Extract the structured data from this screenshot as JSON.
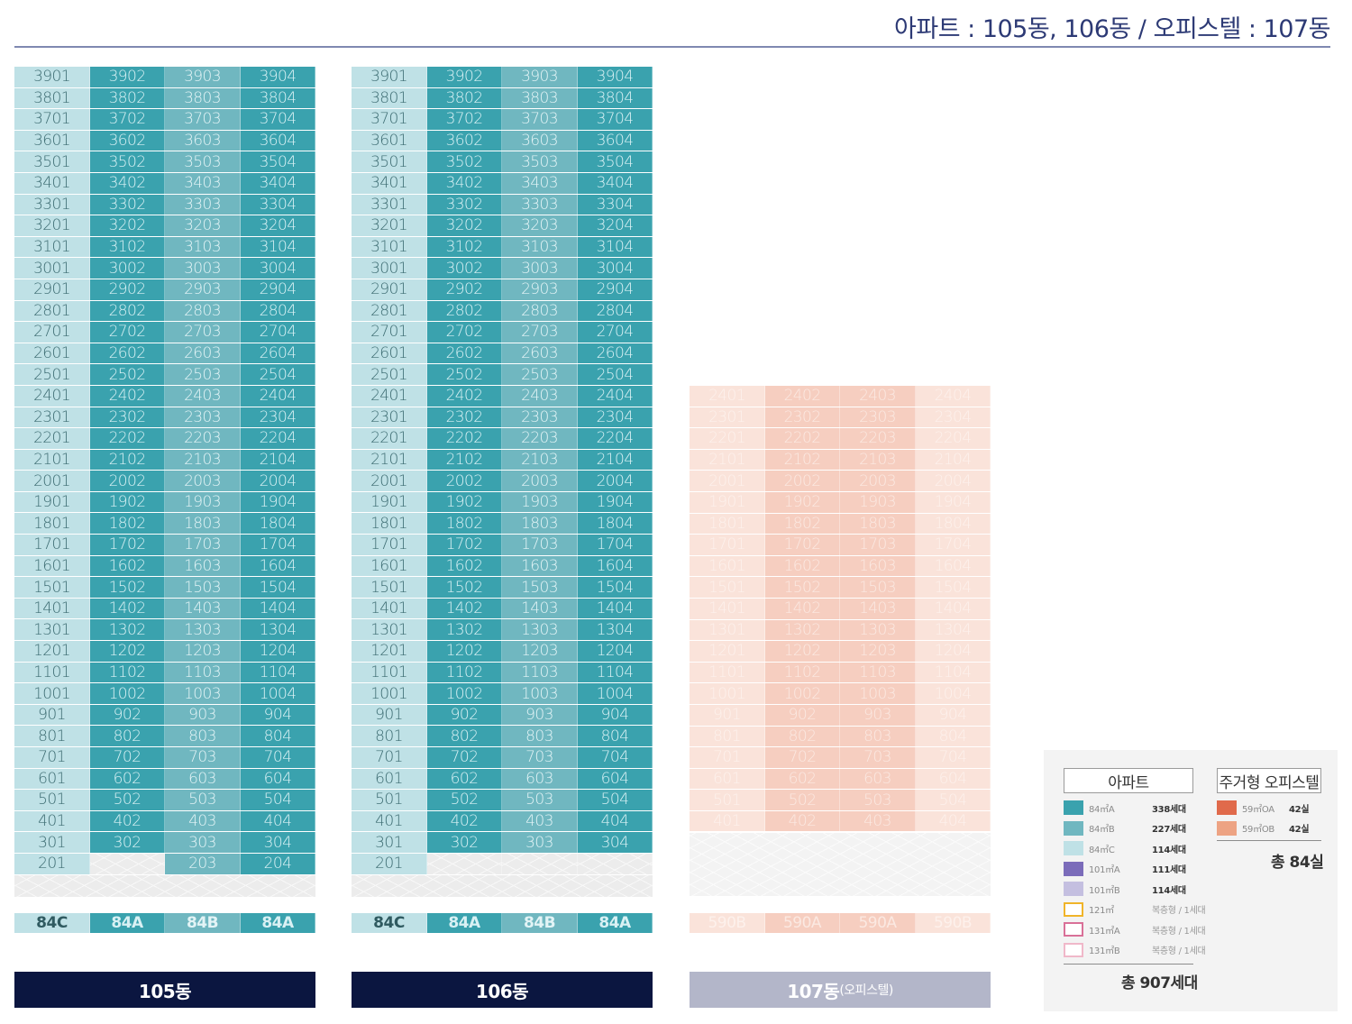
{
  "header": {
    "title": "아파트 : 105동, 106동   /  오피스텔 : 107동"
  },
  "buildings": [
    {
      "key": "b105",
      "kind": "apt",
      "label": "105동",
      "label_sub": "",
      "top_floor": 39,
      "bottom_floor": 2,
      "floor_units": [
        1,
        2,
        3,
        4
      ],
      "missing_units": [
        "202"
      ],
      "types": [
        "84C",
        "84A",
        "84B",
        "84A"
      ]
    },
    {
      "key": "b106",
      "kind": "apt",
      "label": "106동",
      "label_sub": "",
      "top_floor": 39,
      "bottom_floor": 2,
      "floor_units": [
        1,
        2,
        3,
        4
      ],
      "missing_units": [
        "202",
        "203",
        "204"
      ],
      "types": [
        "84C",
        "84A",
        "84B",
        "84A"
      ]
    },
    {
      "key": "b107",
      "kind": "off",
      "label": "107동",
      "label_sub": "(오피스텔)",
      "top_floor": 24,
      "bottom_floor": 4,
      "floor_units": [
        1,
        2,
        3,
        4
      ],
      "missing_units": [],
      "types": [
        "590B",
        "590A",
        "590A",
        "590B"
      ]
    }
  ],
  "colors": {
    "84A": "#3aa2ae",
    "84B": "#70b7c0",
    "84C": "#bfe1e6",
    "101A": "#7b6cba",
    "101B": "#c4bfe0",
    "121": "#f0b429",
    "131A": "#d97098",
    "131B": "#f0b8c9",
    "59A": "#e06a4b",
    "59B": "#eda383",
    "bldg_dark": "#0b1640",
    "bldg_light": "#b3b6c9"
  },
  "legend": {
    "apt_header": "아파트",
    "apt_items": [
      {
        "label": "84㎡A",
        "count": "338세대",
        "swatch": "#3aa2ae",
        "outline": false
      },
      {
        "label": "84㎡B",
        "count": "227세대",
        "swatch": "#70b7c0",
        "outline": false
      },
      {
        "label": "84㎡C",
        "count": "114세대",
        "swatch": "#bfe1e6",
        "outline": false
      },
      {
        "label": "101㎡A",
        "count": "111세대",
        "swatch": "#7b6cba",
        "outline": false
      },
      {
        "label": "101㎡B",
        "count": "114세대",
        "swatch": "#c4bfe0",
        "outline": false
      },
      {
        "label": "121㎡",
        "count": "복층형 / 1세대",
        "swatch": "#f0b429",
        "outline": true
      },
      {
        "label": "131㎡A",
        "count": "복층형 / 1세대",
        "swatch": "#d97098",
        "outline": true
      },
      {
        "label": "131㎡B",
        "count": "복층형 / 1세대",
        "swatch": "#f0b8c9",
        "outline": true
      }
    ],
    "apt_total": "총 907세대",
    "off_header": "주거형 오피스텔",
    "off_items": [
      {
        "label": "59㎡OA",
        "count": "42실",
        "swatch": "#e06a4b"
      },
      {
        "label": "59㎡OB",
        "count": "42실",
        "swatch": "#eda383"
      }
    ],
    "off_total": "총 84실"
  }
}
